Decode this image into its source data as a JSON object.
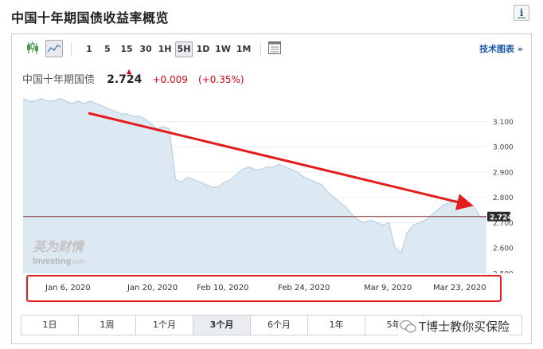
{
  "page": {
    "title": "中国十年期国债收益率概览",
    "info_icon": "i"
  },
  "toolbar": {
    "icons": [
      "candlestick-icon",
      "area-chart-icon",
      "settings-table-icon"
    ],
    "timeframes": [
      "1",
      "5",
      "15",
      "30",
      "1H",
      "5H",
      "1D",
      "1W",
      "1M"
    ],
    "active_timeframe": "5H",
    "tech_chart_label": "技术图表 »"
  },
  "quote": {
    "name": "中国十年期国债",
    "last": "2.724",
    "change": "+0.009",
    "change_pct": "(+0.35%)",
    "up_color": "#d0021b"
  },
  "logo": {
    "cn": "英为财情",
    "en": "Investing",
    "suffix": ".com"
  },
  "chart_data": {
    "type": "area",
    "series": [
      {
        "values": [
          3.19,
          3.18,
          3.18,
          3.19,
          3.18,
          3.18,
          3.19,
          3.18,
          3.17,
          3.18,
          3.17,
          3.18,
          3.17,
          3.16,
          3.15,
          3.14,
          3.13,
          3.13,
          3.12,
          3.12,
          3.11,
          3.09,
          3.07,
          3.08,
          3.07,
          2.87,
          2.86,
          2.88,
          2.87,
          2.86,
          2.85,
          2.84,
          2.84,
          2.86,
          2.87,
          2.89,
          2.91,
          2.92,
          2.91,
          2.91,
          2.92,
          2.92,
          2.93,
          2.92,
          2.91,
          2.9,
          2.88,
          2.87,
          2.86,
          2.85,
          2.82,
          2.8,
          2.78,
          2.76,
          2.73,
          2.71,
          2.7,
          2.71,
          2.7,
          2.69,
          2.7,
          2.6,
          2.58,
          2.66,
          2.69,
          2.7,
          2.71,
          2.73,
          2.75,
          2.77,
          2.78,
          2.79,
          2.79,
          2.78,
          2.76,
          2.72,
          2.72
        ]
      }
    ],
    "y_ticks": [
      "3.100",
      "3.000",
      "2.900",
      "2.800",
      "2.700",
      "2.600",
      "2.500"
    ],
    "ylim": [
      2.5,
      3.23
    ],
    "current_value_label": "2.724",
    "x_ticks": [
      "Jan 6, 2020",
      "Jan 20, 2020",
      "Feb 10, 2020",
      "Feb 24, 2020",
      "Mar 9, 2020",
      "Mar 23, 2020"
    ],
    "annotation": "red arrow indicating downward trend",
    "colors": {
      "fill": "#dde9f2",
      "line": "#b9cfe0",
      "arrow": "#e41c1c",
      "current_line": "#7a2f2f"
    }
  },
  "ranges": {
    "items": [
      "1日",
      "1周",
      "1个月",
      "3个月",
      "6个月",
      "1年",
      "5年"
    ],
    "active": "3个月"
  },
  "watermark": {
    "text": "T博士教你买保险"
  }
}
